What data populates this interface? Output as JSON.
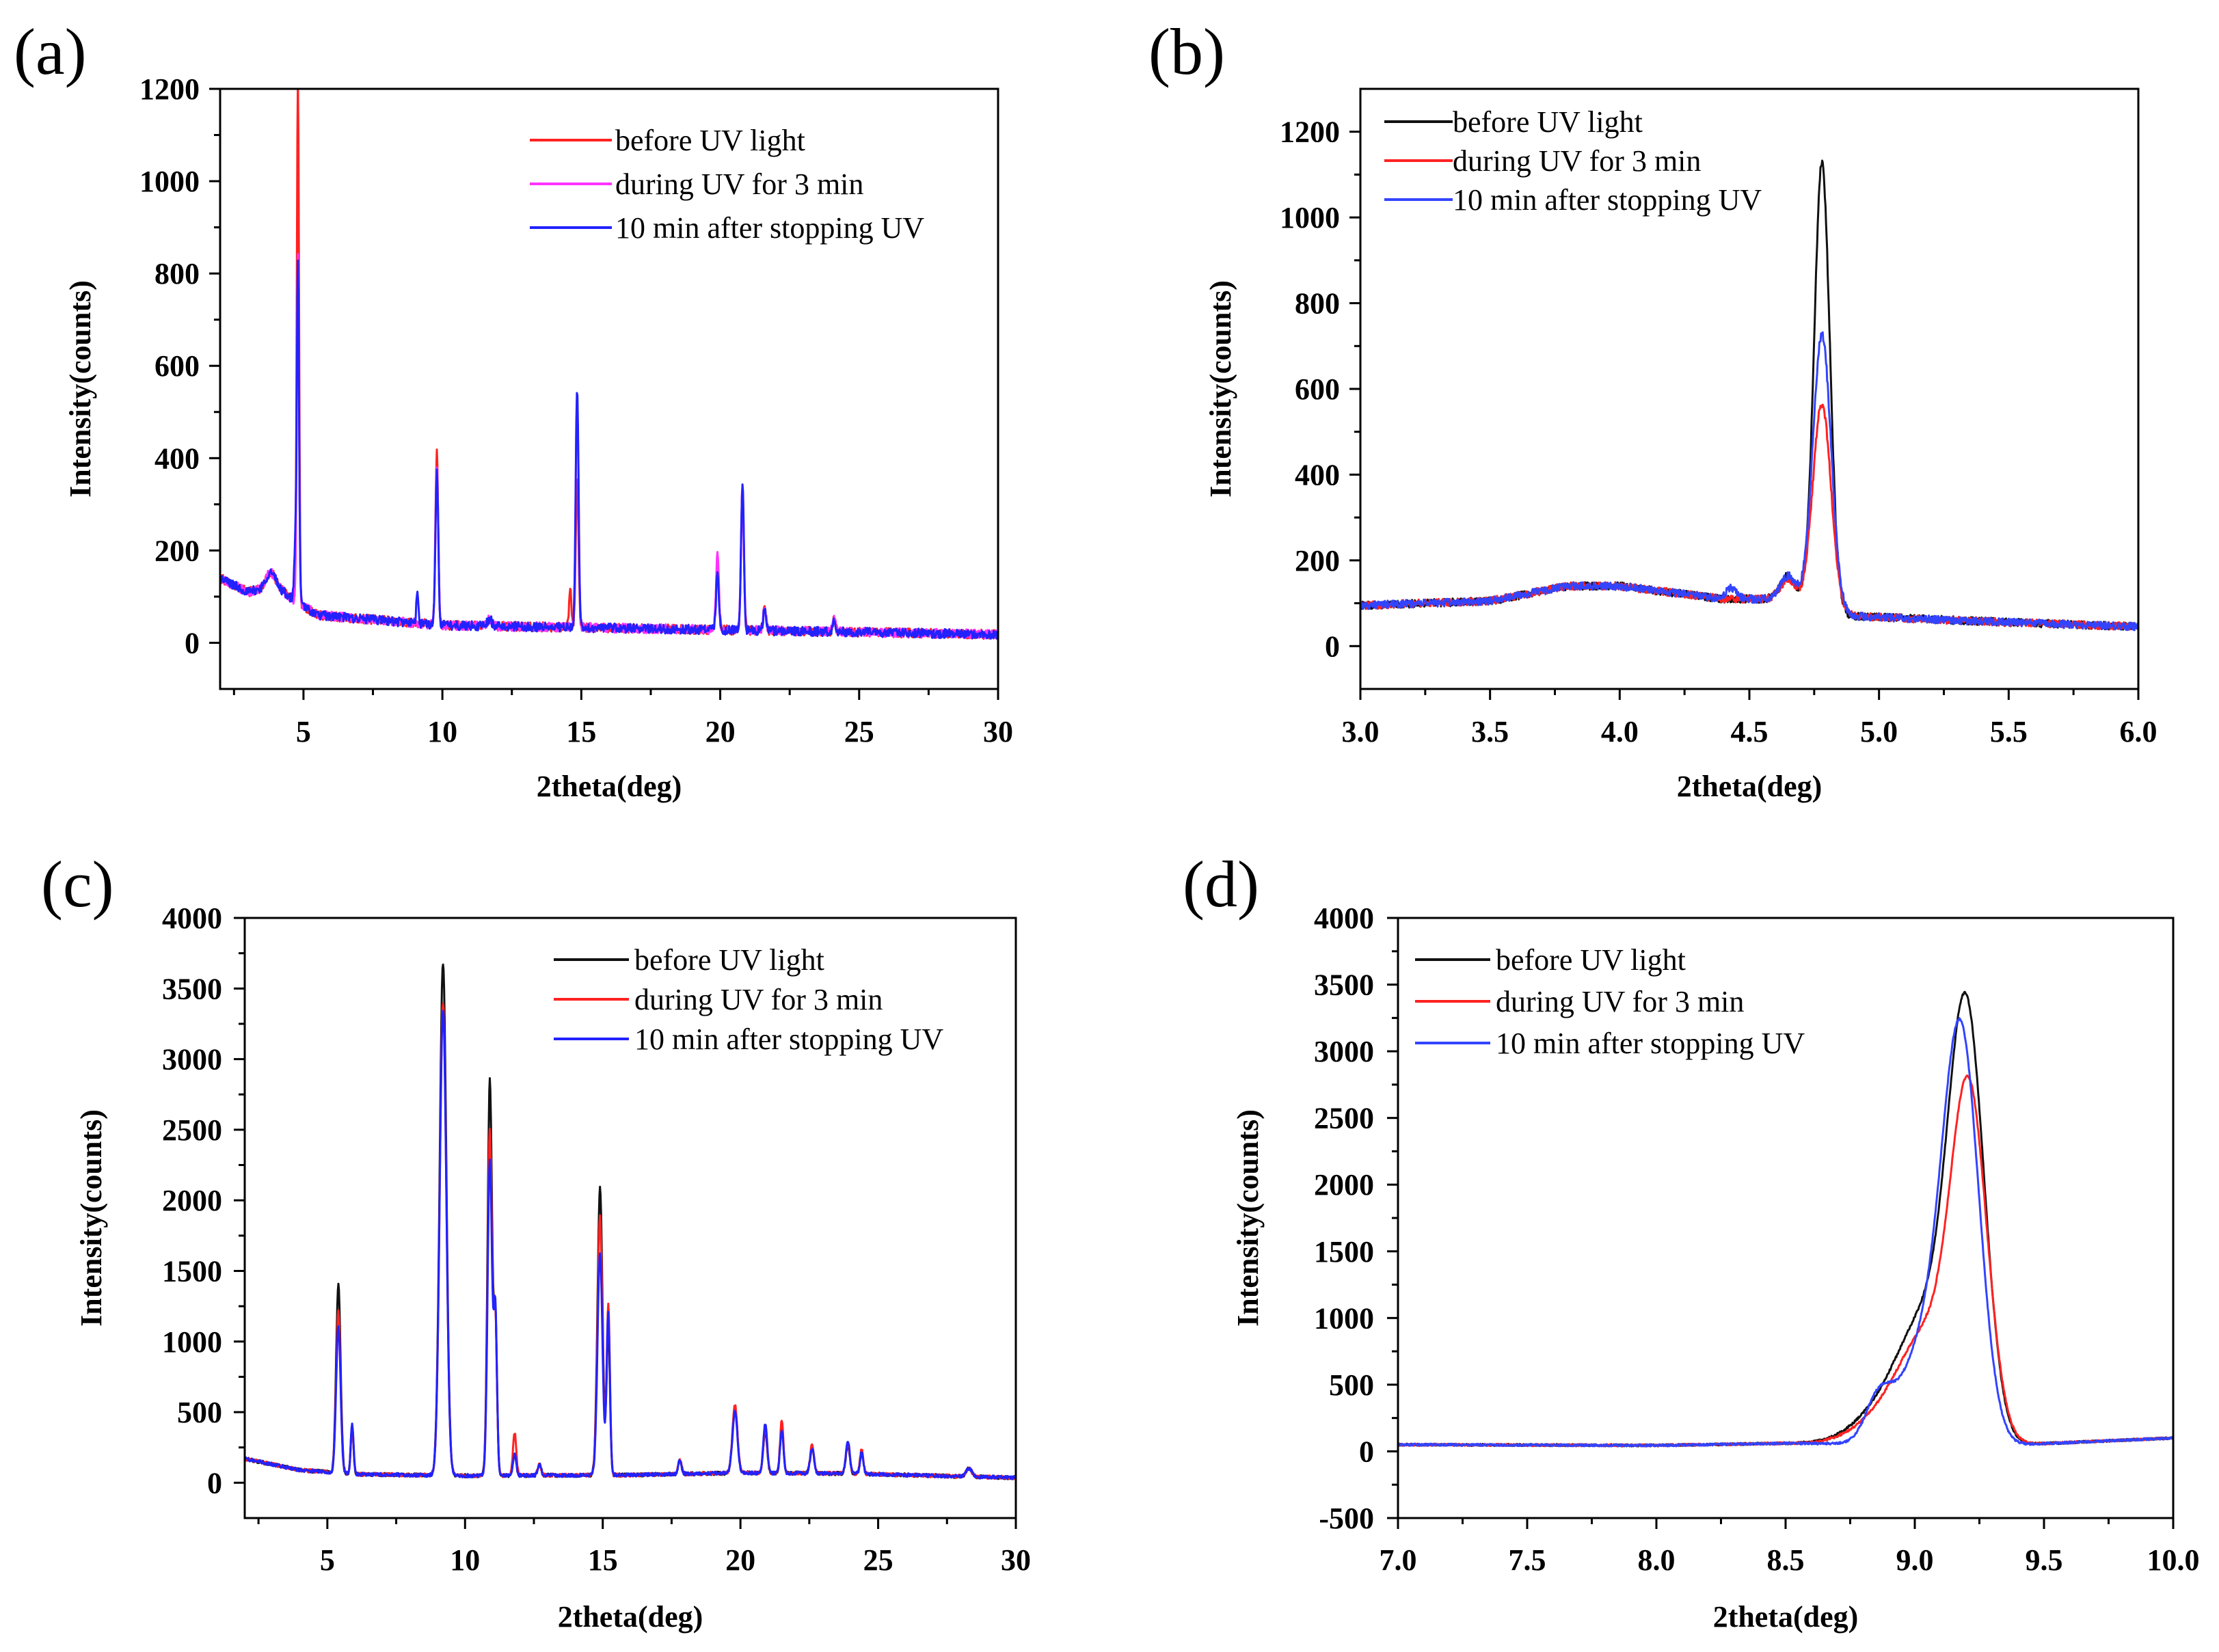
{
  "chart_data": [
    {
      "type": "line",
      "panel_label": "(a)",
      "xlabel": "2theta(deg)",
      "ylabel": "Intensity(counts)",
      "xlim": [
        2,
        30
      ],
      "ylim": [
        -100,
        1200
      ],
      "xticks": [
        5,
        10,
        15,
        20,
        25,
        30
      ],
      "yticks": [
        0,
        200,
        400,
        600,
        800,
        1000,
        1200
      ],
      "legend_position": "top-right",
      "baseline": {
        "x": [
          2,
          3,
          4,
          4.6,
          5.5,
          10,
          20,
          30
        ],
        "y": [
          140,
          110,
          125,
          95,
          60,
          38,
          28,
          18
        ]
      },
      "noise": 10,
      "series": [
        {
          "name": "before UV light",
          "color": "#ff2222",
          "peaks": [
            [
              3.8,
              30,
              0.15
            ],
            [
              4.8,
              1150,
              0.04
            ],
            [
              9.8,
              375,
              0.05
            ],
            [
              11.7,
              15,
              0.08
            ],
            [
              14.6,
              90,
              0.04
            ],
            [
              14.85,
              320,
              0.05
            ],
            [
              19.9,
              140,
              0.05
            ],
            [
              20.8,
              310,
              0.05
            ],
            [
              21.6,
              50,
              0.05
            ],
            [
              24.1,
              25,
              0.05
            ]
          ]
        },
        {
          "name": "during UV for 3 min",
          "color": "#ff33ff",
          "peaks": [
            [
              3.8,
              30,
              0.15
            ],
            [
              4.8,
              760,
              0.04
            ],
            [
              9.8,
              350,
              0.05
            ],
            [
              11.7,
              15,
              0.08
            ],
            [
              14.85,
              500,
              0.05
            ],
            [
              19.9,
              165,
              0.05
            ],
            [
              20.8,
              315,
              0.05
            ],
            [
              21.6,
              50,
              0.05
            ],
            [
              24.1,
              25,
              0.05
            ]
          ]
        },
        {
          "name": "10 min after stopping UV",
          "color": "#2222ff",
          "peaks": [
            [
              3.8,
              30,
              0.15
            ],
            [
              4.7,
              100,
              0.04
            ],
            [
              4.8,
              740,
              0.04
            ],
            [
              9.1,
              60,
              0.04
            ],
            [
              9.8,
              340,
              0.05
            ],
            [
              11.7,
              15,
              0.08
            ],
            [
              14.85,
              520,
              0.05
            ],
            [
              19.9,
              120,
              0.05
            ],
            [
              20.8,
              320,
              0.05
            ],
            [
              21.6,
              50,
              0.05
            ],
            [
              24.1,
              25,
              0.05
            ]
          ]
        }
      ]
    },
    {
      "type": "line",
      "panel_label": "(b)",
      "xlabel": "2theta(deg)",
      "ylabel": "Intensity(counts)",
      "xlim": [
        3.0,
        6.0
      ],
      "ylim": [
        -100,
        1300
      ],
      "xticks": [
        3.0,
        3.5,
        4.0,
        4.5,
        5.0,
        5.5,
        6.0
      ],
      "yticks": [
        0,
        200,
        400,
        600,
        800,
        1000,
        1200
      ],
      "legend_position": "top-left",
      "baseline": {
        "x": [
          3.0,
          3.5,
          3.8,
          4.0,
          4.4,
          4.6,
          4.9,
          5.3,
          6.0
        ],
        "y": [
          95,
          105,
          140,
          140,
          110,
          110,
          70,
          60,
          45
        ]
      },
      "noise": 9,
      "series": [
        {
          "name": "before UV light",
          "color": "#111111",
          "peaks": [
            [
              4.65,
              60,
              0.03
            ],
            [
              4.78,
              1040,
              0.03
            ]
          ]
        },
        {
          "name": "during UV for 3 min",
          "color": "#ff2222",
          "peaks": [
            [
              4.65,
              50,
              0.03
            ],
            [
              4.78,
              480,
              0.035
            ]
          ]
        },
        {
          "name": "10 min after stopping UV",
          "color": "#3344ff",
          "peaks": [
            [
              4.43,
              25,
              0.02
            ],
            [
              4.65,
              60,
              0.03
            ],
            [
              4.78,
              640,
              0.035
            ]
          ]
        }
      ]
    },
    {
      "type": "line",
      "panel_label": "(c)",
      "xlabel": "2theta(deg)",
      "ylabel": "Intensity(counts)",
      "xlim": [
        2,
        30
      ],
      "ylim": [
        -250,
        4000
      ],
      "xticks": [
        5,
        10,
        15,
        20,
        25,
        30
      ],
      "yticks": [
        0,
        500,
        1000,
        1500,
        2000,
        2500,
        3000,
        3500,
        4000
      ],
      "legend_position": "top-right",
      "baseline": {
        "x": [
          2,
          4,
          6,
          10,
          16,
          20,
          24,
          30
        ],
        "y": [
          170,
          90,
          60,
          50,
          55,
          70,
          65,
          35
        ]
      },
      "noise": 12,
      "series": [
        {
          "name": "before UV light",
          "color": "#111111",
          "peaks": [
            [
              5.4,
              1340,
              0.08
            ],
            [
              5.9,
              340,
              0.05
            ],
            [
              9.2,
              3630,
              0.12
            ],
            [
              10.9,
              2800,
              0.08
            ],
            [
              11.1,
              1100,
              0.06
            ],
            [
              11.8,
              150,
              0.06
            ],
            [
              12.7,
              80,
              0.06
            ],
            [
              14.9,
              2040,
              0.09
            ],
            [
              15.2,
              1050,
              0.06
            ],
            [
              17.8,
              100,
              0.06
            ],
            [
              19.8,
              470,
              0.09
            ],
            [
              20.9,
              300,
              0.07
            ],
            [
              21.5,
              330,
              0.06
            ],
            [
              22.6,
              180,
              0.07
            ],
            [
              23.9,
              200,
              0.07
            ],
            [
              24.4,
              150,
              0.06
            ],
            [
              28.3,
              60,
              0.1
            ]
          ]
        },
        {
          "name": "during UV for 3 min",
          "color": "#ff2222",
          "peaks": [
            [
              5.4,
              1140,
              0.08
            ],
            [
              5.9,
              340,
              0.05
            ],
            [
              9.2,
              3350,
              0.12
            ],
            [
              10.9,
              2450,
              0.08
            ],
            [
              11.1,
              1100,
              0.06
            ],
            [
              11.8,
              300,
              0.06
            ],
            [
              12.7,
              80,
              0.06
            ],
            [
              14.9,
              1830,
              0.09
            ],
            [
              15.2,
              1200,
              0.06
            ],
            [
              17.8,
              100,
              0.06
            ],
            [
              19.8,
              480,
              0.09
            ],
            [
              20.9,
              330,
              0.07
            ],
            [
              21.5,
              380,
              0.06
            ],
            [
              22.6,
              200,
              0.07
            ],
            [
              23.9,
              220,
              0.07
            ],
            [
              24.4,
              170,
              0.06
            ],
            [
              28.3,
              60,
              0.1
            ]
          ]
        },
        {
          "name": "10 min after stopping UV",
          "color": "#2222ff",
          "peaks": [
            [
              5.4,
              1040,
              0.08
            ],
            [
              5.9,
              360,
              0.05
            ],
            [
              9.2,
              3300,
              0.12
            ],
            [
              10.9,
              2240,
              0.08
            ],
            [
              11.1,
              1150,
              0.06
            ],
            [
              11.8,
              150,
              0.06
            ],
            [
              12.7,
              80,
              0.06
            ],
            [
              14.9,
              1580,
              0.09
            ],
            [
              15.2,
              1150,
              0.06
            ],
            [
              17.8,
              100,
              0.06
            ],
            [
              19.8,
              430,
              0.09
            ],
            [
              20.9,
              350,
              0.07
            ],
            [
              21.5,
              310,
              0.06
            ],
            [
              22.6,
              180,
              0.07
            ],
            [
              23.9,
              230,
              0.07
            ],
            [
              24.4,
              150,
              0.06
            ],
            [
              28.3,
              60,
              0.1
            ]
          ]
        }
      ]
    },
    {
      "type": "line",
      "panel_label": "(d)",
      "xlabel": "2theta(deg)",
      "ylabel": "Intensity(counts)",
      "xlim": [
        7.0,
        10.0
      ],
      "ylim": [
        -500,
        4000
      ],
      "xticks": [
        7.0,
        7.5,
        8.0,
        8.5,
        9.0,
        9.5,
        10.0
      ],
      "yticks": [
        -500,
        0,
        500,
        1000,
        1500,
        2000,
        2500,
        3000,
        3500,
        4000
      ],
      "legend_position": "top-left",
      "baseline": {
        "x": [
          7.0,
          8.0,
          8.5,
          9.4,
          10.0
        ],
        "y": [
          50,
          45,
          60,
          50,
          100
        ]
      },
      "noise": 8,
      "series": [
        {
          "name": "before UV light",
          "color": "#111111",
          "peaks": [
            [
              8.9,
              280,
              0.12
            ],
            [
              9.05,
              800,
              0.1
            ],
            [
              9.2,
              3100,
              0.07
            ]
          ]
        },
        {
          "name": "during UV for 3 min",
          "color": "#ff2222",
          "peaks": [
            [
              8.9,
              220,
              0.12
            ],
            [
              9.05,
              700,
              0.1
            ],
            [
              9.21,
              2550,
              0.07
            ]
          ]
        },
        {
          "name": "10 min after stopping UV",
          "color": "#3344ff",
          "peaks": [
            [
              8.86,
              300,
              0.05
            ],
            [
              9.05,
              750,
              0.1
            ],
            [
              9.18,
              2850,
              0.07
            ]
          ]
        }
      ]
    }
  ]
}
